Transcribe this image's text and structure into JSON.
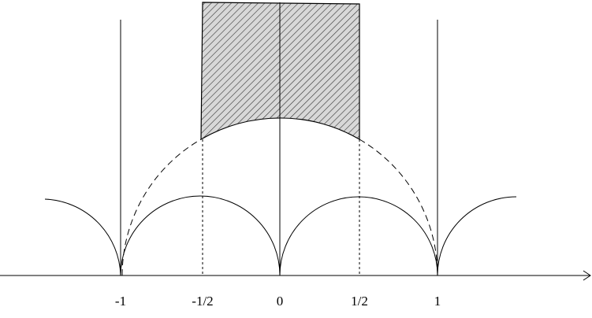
{
  "axis": {
    "labels": [
      "-1",
      "-1/2",
      "0",
      "1/2",
      "1"
    ]
  }
}
